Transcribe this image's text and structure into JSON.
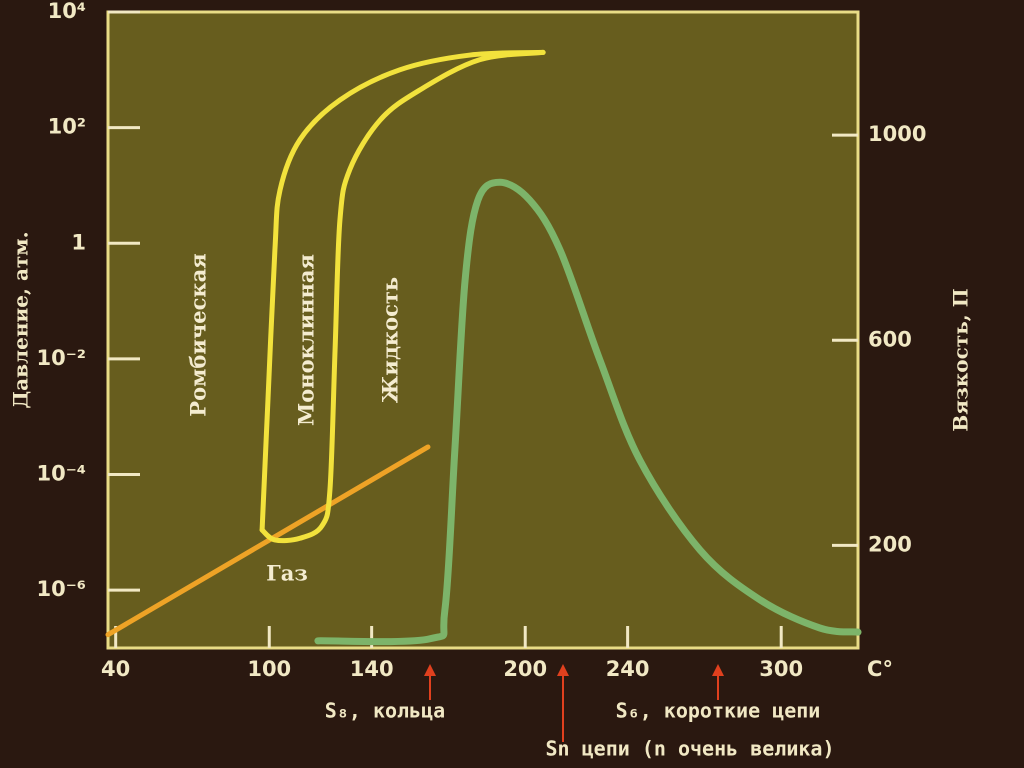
{
  "chart_data": {
    "type": "line",
    "y_label": "Давление, атм.",
    "y2_label": "Вязкость, П",
    "x_unit": "C°",
    "xlim": [
      37,
      330
    ],
    "xticks": [
      40,
      100,
      140,
      200,
      240,
      300
    ],
    "ylim": [
      1e-07,
      10000
    ],
    "yscale": "log",
    "yticks": [
      {
        "value": 1e-06,
        "label": "10⁻⁶"
      },
      {
        "value": 0.0001,
        "label": "10⁻⁴"
      },
      {
        "value": 0.01,
        "label": "10⁻²"
      },
      1,
      {
        "value": 100,
        "label": "10²"
      },
      {
        "value": 10000,
        "label": "10⁴"
      }
    ],
    "y2lim": [
      0,
      1240
    ],
    "y2ticks": [
      200,
      600,
      1000
    ],
    "series": [
      {
        "color": "#eea326",
        "x": [
          37,
          162
        ],
        "values": [
          1.7e-07,
          0.0003
        ]
      },
      {
        "color": "#f2e23c",
        "x": [
          97.2,
          99.5,
          102.2,
          104.2,
          112,
          127.6,
          151,
          178.4,
          207
        ],
        "values": [
          1.1e-05,
          0.002,
          0.76,
          8.3,
          62,
          300,
          1000,
          1800,
          2000
        ]
      },
      {
        "color": "#f2e23c",
        "x": [
          97.2,
          102.2,
          112,
          120.6,
          123.7,
          125.7,
          127.6,
          131.5,
          143.3,
          158.9,
          182.3,
          207
        ],
        "values": [
          1.1e-05,
          7.4e-06,
          7.9e-06,
          1.3e-05,
          5.4e-05,
          0.014,
          2.5,
          19,
          135,
          450,
          1500,
          2000
        ]
      },
      {
        "color": "#7db46a",
        "axis": "y2",
        "x": [
          119,
          162.8,
          168.6,
          172.5,
          176.5,
          181.5,
          190.1,
          201.8,
          213.6,
          229.2,
          244.8,
          268.3,
          291.7,
          315.1,
          330
        ],
        "values": [
          14,
          18,
          74,
          386,
          717,
          873,
          908,
          873,
          776,
          561,
          366,
          191,
          94,
          39,
          31
        ]
      }
    ],
    "region_labels": [
      "Ромбическая",
      "Моноклинная",
      "Жидкость",
      "Газ"
    ],
    "annotations": [
      "S₈, кольца",
      "S₆, короткие цепи",
      "Sn цепи (n очень велика)"
    ]
  }
}
